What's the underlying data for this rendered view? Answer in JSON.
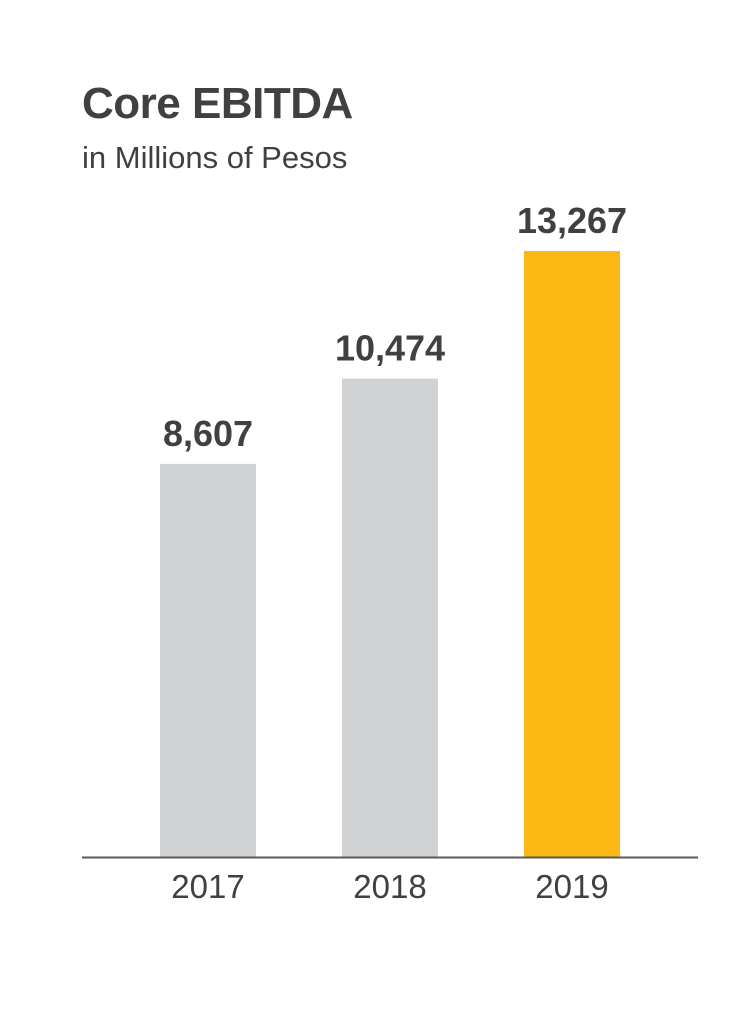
{
  "chart_data": {
    "type": "bar",
    "title": "Core EBITDA",
    "subtitle": "in Millions of Pesos",
    "categories": [
      "2017",
      "2018",
      "2019"
    ],
    "values": [
      8607,
      10474,
      13267
    ],
    "value_labels": [
      "8,607",
      "10,474",
      "13,267"
    ],
    "xlabel": "",
    "ylabel": "",
    "ylim": [
      0,
      15500
    ],
    "grid": false,
    "legend": "none",
    "colors": {
      "default_bar": "#d1d2d4",
      "highlight_bar": "#fbb814",
      "axis": "#58595b",
      "text": "#404041"
    },
    "highlight_index": 2
  }
}
